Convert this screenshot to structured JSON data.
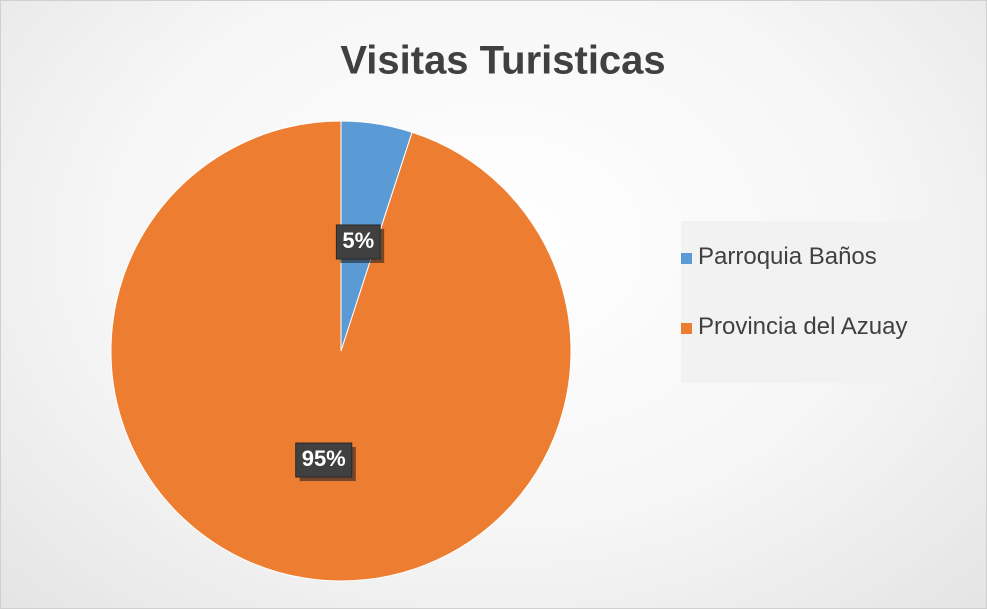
{
  "chart_data": {
    "type": "pie",
    "title": "Visitas Turisticas",
    "categories": [
      "Parroquia Baños",
      "Provincia del Azuay"
    ],
    "values": [
      5,
      95
    ],
    "value_labels": [
      "5%",
      "95%"
    ],
    "colors": [
      "#5b9bd5",
      "#ed7d31"
    ],
    "legend": "right"
  }
}
